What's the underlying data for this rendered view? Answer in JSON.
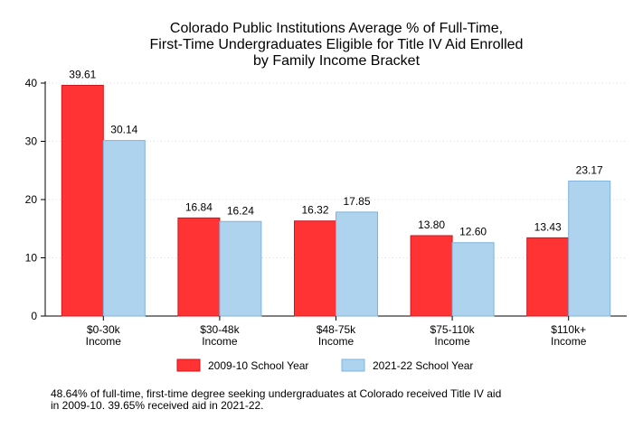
{
  "chart_data": {
    "type": "bar",
    "title_lines": [
      "Colorado Public Institutions Average % of Full-Time,",
      "First-Time Undergraduates Eligible for Title IV Aid Enrolled",
      "by Family Income Bracket"
    ],
    "categories": [
      [
        "$0-30k",
        "Income"
      ],
      [
        "$30-48k",
        "Income"
      ],
      [
        "$48-75k",
        "Income"
      ],
      [
        "$75-110k",
        "Income"
      ],
      [
        "$110k+",
        "Income"
      ]
    ],
    "series": [
      {
        "name": "2009-10 School Year",
        "values": [
          39.61,
          16.84,
          16.32,
          13.8,
          13.43
        ],
        "labels": [
          "39.61",
          "16.84",
          "16.32",
          "13.80",
          "13.43"
        ],
        "color": "#ff3333",
        "stroke": "#d0141c"
      },
      {
        "name": "2021-22 School Year",
        "values": [
          30.14,
          16.24,
          17.85,
          12.6,
          23.17
        ],
        "labels": [
          "30.14",
          "16.24",
          "17.85",
          "12.60",
          "23.17"
        ],
        "color": "#aed3ef",
        "stroke": "#7fb3dc"
      }
    ],
    "ylim": [
      0,
      40
    ],
    "yticks": [
      0,
      10,
      20,
      30,
      40
    ],
    "grid": true,
    "legend": "bottom"
  },
  "note_lines": [
    "48.64% of full-time, first-time degree seeking undergraduates at Colorado received Title IV aid",
    "in 2009-10. 39.65% received aid in 2021-22."
  ]
}
